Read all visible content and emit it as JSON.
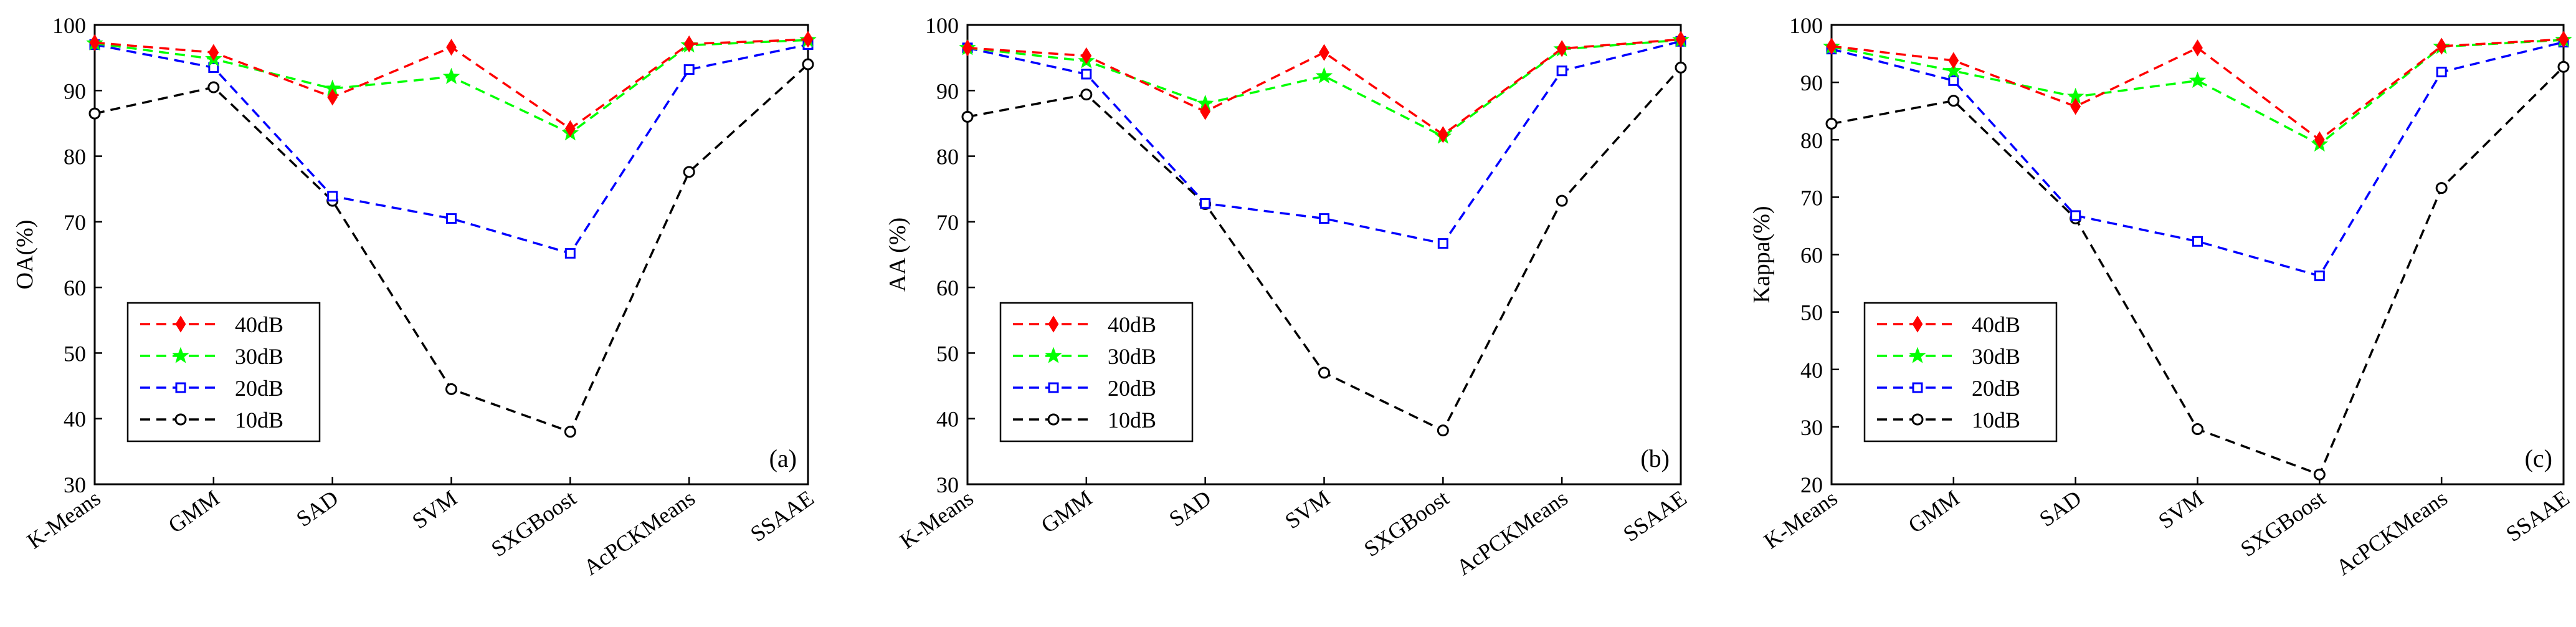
{
  "chart_data": [
    {
      "type": "line",
      "panel_label": "(a)",
      "ylabel": "OA(%)",
      "xlabel": "",
      "ylim": [
        30,
        100
      ],
      "yticks": [
        30,
        40,
        50,
        60,
        70,
        80,
        90,
        100
      ],
      "categories": [
        "K-Means",
        "GMM",
        "SAD",
        "SVM",
        "SXGBoost",
        "AcPCKMeans",
        "SSAAE"
      ],
      "legend_position": "lower-left",
      "series": [
        {
          "name": "40dB",
          "color": "#ff0000",
          "marker": "diamond",
          "values": [
            97.3,
            95.8,
            89.0,
            96.6,
            84.2,
            97.1,
            97.8
          ]
        },
        {
          "name": "30dB",
          "color": "#00ff00",
          "marker": "star",
          "values": [
            97.2,
            94.8,
            90.3,
            92.1,
            83.5,
            96.9,
            97.7
          ]
        },
        {
          "name": "20dB",
          "color": "#0000ff",
          "marker": "square",
          "values": [
            97.0,
            93.5,
            73.9,
            70.5,
            65.2,
            93.2,
            97.0
          ]
        },
        {
          "name": "10dB",
          "color": "#000000",
          "marker": "circle",
          "values": [
            86.5,
            90.5,
            73.2,
            44.5,
            38.0,
            77.6,
            94.0
          ]
        }
      ]
    },
    {
      "type": "line",
      "panel_label": "(b)",
      "ylabel": "AA (%)",
      "xlabel": "",
      "ylim": [
        30,
        100
      ],
      "yticks": [
        30,
        40,
        50,
        60,
        70,
        80,
        90,
        100
      ],
      "categories": [
        "K-Means",
        "GMM",
        "SAD",
        "SVM",
        "SXGBoost",
        "AcPCKMeans",
        "SSAAE"
      ],
      "legend_position": "lower-left",
      "series": [
        {
          "name": "40dB",
          "color": "#ff0000",
          "marker": "diamond",
          "values": [
            96.5,
            95.3,
            86.8,
            95.8,
            83.3,
            96.4,
            97.8
          ]
        },
        {
          "name": "30dB",
          "color": "#00ff00",
          "marker": "star",
          "values": [
            96.5,
            94.5,
            88.0,
            92.2,
            83.0,
            96.3,
            97.7
          ]
        },
        {
          "name": "20dB",
          "color": "#0000ff",
          "marker": "square",
          "values": [
            96.5,
            92.5,
            72.8,
            70.5,
            66.7,
            93.0,
            97.5
          ]
        },
        {
          "name": "10dB",
          "color": "#000000",
          "marker": "circle",
          "values": [
            86.0,
            89.4,
            72.7,
            47.0,
            38.2,
            73.2,
            93.5
          ]
        }
      ]
    },
    {
      "type": "line",
      "panel_label": "(c)",
      "ylabel": "Kappa(%)",
      "xlabel": "",
      "ylim": [
        20,
        100
      ],
      "yticks": [
        20,
        30,
        40,
        50,
        60,
        70,
        80,
        90,
        100
      ],
      "categories": [
        "K-Means",
        "GMM",
        "SAD",
        "SVM",
        "SXGBoost",
        "AcPCKMeans",
        "SSAAE"
      ],
      "legend_position": "lower-left",
      "series": [
        {
          "name": "40dB",
          "color": "#ff0000",
          "marker": "diamond",
          "values": [
            96.3,
            93.8,
            85.8,
            96.0,
            80.0,
            96.3,
            97.5
          ]
        },
        {
          "name": "30dB",
          "color": "#00ff00",
          "marker": "star",
          "values": [
            96.2,
            92.0,
            87.5,
            90.3,
            79.2,
            96.2,
            97.4
          ]
        },
        {
          "name": "20dB",
          "color": "#0000ff",
          "marker": "square",
          "values": [
            95.8,
            90.3,
            66.8,
            62.3,
            56.3,
            91.8,
            97.0
          ]
        },
        {
          "name": "10dB",
          "color": "#000000",
          "marker": "circle",
          "values": [
            82.8,
            86.8,
            66.3,
            29.6,
            21.7,
            71.6,
            92.7
          ]
        }
      ]
    }
  ]
}
